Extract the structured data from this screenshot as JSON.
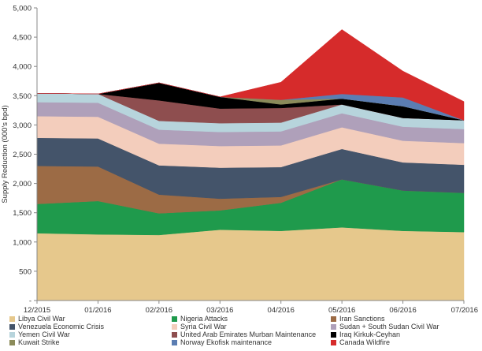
{
  "chart_data": {
    "type": "area",
    "stacked": true,
    "title": "",
    "xlabel": "",
    "ylabel": "Supply Reduction (000's bpd)",
    "ylim": [
      0,
      5000
    ],
    "yticks": [
      0,
      500,
      1000,
      1500,
      2000,
      2500,
      3000,
      3500,
      4000,
      4500,
      5000
    ],
    "ytick_labels": [
      "-",
      "500",
      "1,000",
      "1,500",
      "2,000",
      "2,500",
      "3,000",
      "3,500",
      "4,000",
      "4,500",
      "5,000"
    ],
    "grid": false,
    "legend_position": "bottom",
    "categories": [
      "12/2015",
      "01/2016",
      "02/2016",
      "03/2016",
      "04/2016",
      "05/2016",
      "06/2016",
      "07/2016"
    ],
    "series": [
      {
        "name": "Libya Civil War",
        "color": "#E6C88C",
        "values": [
          1150,
          1130,
          1120,
          1210,
          1190,
          1250,
          1190,
          1170
        ]
      },
      {
        "name": "Nigeria Attacks",
        "color": "#1F9A4C",
        "values": [
          500,
          570,
          370,
          330,
          480,
          820,
          690,
          670
        ]
      },
      {
        "name": "Iran Sanctions",
        "color": "#9C6B45",
        "values": [
          650,
          590,
          320,
          200,
          100,
          0,
          0,
          0
        ]
      },
      {
        "name": "Venezuela Economic Crisis",
        "color": "#44546A",
        "values": [
          480,
          480,
          500,
          530,
          510,
          520,
          480,
          480
        ]
      },
      {
        "name": "Syria Civil War",
        "color": "#F3CDBC",
        "values": [
          370,
          370,
          370,
          370,
          370,
          370,
          370,
          370
        ]
      },
      {
        "name": "Sudan + South Sudan Civil War",
        "color": "#AFA0BA",
        "values": [
          240,
          240,
          240,
          240,
          240,
          240,
          240,
          240
        ]
      },
      {
        "name": "Yemen Civil War",
        "color": "#B7D4DC",
        "values": [
          150,
          150,
          150,
          150,
          150,
          150,
          150,
          150
        ]
      },
      {
        "name": "United Arab Emirates Murban Maintenance",
        "color": "#8E4E4F",
        "values": [
          0,
          0,
          350,
          250,
          250,
          0,
          0,
          0
        ]
      },
      {
        "name": "Iraq Kirkuk-Ceyhan",
        "color": "#000000",
        "values": [
          0,
          0,
          300,
          200,
          60,
          100,
          200,
          0
        ]
      },
      {
        "name": "Kuwait Strike",
        "color": "#8B8B5A",
        "values": [
          0,
          0,
          0,
          0,
          80,
          0,
          0,
          0
        ]
      },
      {
        "name": "Norway Ekofisk maintenance",
        "color": "#5B7DB2",
        "values": [
          0,
          0,
          0,
          0,
          0,
          80,
          150,
          0
        ]
      },
      {
        "name": "Canada Wildfire",
        "color": "#D62B2B",
        "values": [
          0,
          0,
          0,
          0,
          300,
          1100,
          450,
          320
        ]
      }
    ],
    "legend_entries": [
      "Libya Civil War",
      "Nigeria Attacks",
      "Iran Sanctions",
      "Venezuela Economic Crisis",
      "Syria Civil War",
      "Sudan + South Sudan Civil War",
      "Yemen Civil War",
      "United Arab Emirates Murban Maintenance",
      "Iraq Kirkuk-Ceyhan",
      "Kuwait Strike",
      "Norway Ekofisk maintenance",
      "Canada Wildfire"
    ],
    "legend_colors": [
      "#E6C88C",
      "#1F9A4C",
      "#9C6B45",
      "#44546A",
      "#F3CDBC",
      "#AFA0BA",
      "#B7D4DC",
      "#8E4E4F",
      "#000000",
      "#8B8B5A",
      "#5B7DB2",
      "#D62B2B"
    ]
  }
}
